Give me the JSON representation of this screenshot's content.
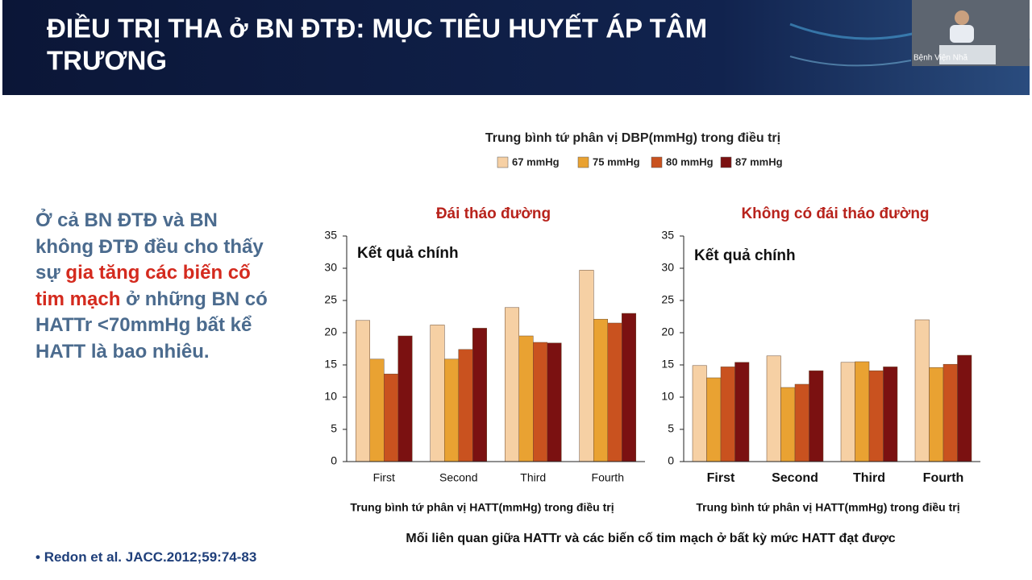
{
  "slide": {
    "title_line1": "ĐIỀU TRỊ THA ở BN ĐTĐ: MỤC TIÊU HUYẾT ÁP TÂM",
    "title_line2": "TRƯƠNG",
    "video_caption": "Bệnh Viện Nhã",
    "text_runs": [
      {
        "text": "Ở cả BN ĐTĐ và BN không ĐTĐ đều cho thấy sự ",
        "highlight": false
      },
      {
        "text": "gia tăng các biến cố tim mạch",
        "highlight": true
      },
      {
        "text": " ở những BN có HATTr <70mmHg bất kể HATT là bao nhiêu.",
        "highlight": false
      }
    ],
    "figure_title": "Trung bình tứ phân vị DBP(mmHg) trong điều trị",
    "figure_caption": "Mối liên quan giữa HATTr và các biến cố tim mạch ở bất kỳ mức HATT đạt được",
    "reference": "Redon et al. JACC.2012;59:74-83"
  },
  "chart_data": [
    {
      "type": "bar",
      "title": "Đái tháo đường",
      "annotation": "Kết quả chính",
      "x_label": "Trung bình tứ phân vị HATT(mmHg) trong điều trị",
      "categories": [
        "First",
        "Second",
        "Third",
        "Fourth"
      ],
      "series": [
        {
          "name": "67 mmHg",
          "color": "#f6d0a4",
          "values": [
            21.9,
            21.2,
            23.9,
            29.7
          ]
        },
        {
          "name": "75 mmHg",
          "color": "#e9a232",
          "values": [
            15.9,
            15.9,
            19.5,
            22.1
          ]
        },
        {
          "name": "80 mmHg",
          "color": "#c9521f",
          "values": [
            13.6,
            17.4,
            18.5,
            21.5
          ]
        },
        {
          "name": "87 mmHg",
          "color": "#7b1111",
          "values": [
            19.5,
            20.7,
            18.4,
            23.0
          ]
        }
      ],
      "ylim": [
        0,
        35
      ],
      "yticks": [
        0,
        5,
        10,
        15,
        20,
        25,
        30,
        35
      ]
    },
    {
      "type": "bar",
      "title": "Không có đái tháo đường",
      "annotation": "Kết quả chính",
      "x_label": "Trung bình tứ phân vị HATT(mmHg) trong điều trị",
      "categories": [
        "First",
        "Second",
        "Third",
        "Fourth"
      ],
      "series": [
        {
          "color": "#f6d0a4",
          "values": [
            14.9,
            16.4,
            15.4,
            22.0
          ]
        },
        {
          "color": "#e9a232",
          "values": [
            13.0,
            11.5,
            15.5,
            14.6
          ]
        },
        {
          "color": "#c9521f",
          "values": [
            14.7,
            12.0,
            14.1,
            15.1
          ]
        },
        {
          "color": "#7b1111",
          "values": [
            15.4,
            14.1,
            14.7,
            16.5
          ]
        }
      ],
      "ylim": [
        0,
        35
      ],
      "yticks": [
        0,
        5,
        10,
        15,
        20,
        25,
        30,
        35
      ]
    }
  ]
}
